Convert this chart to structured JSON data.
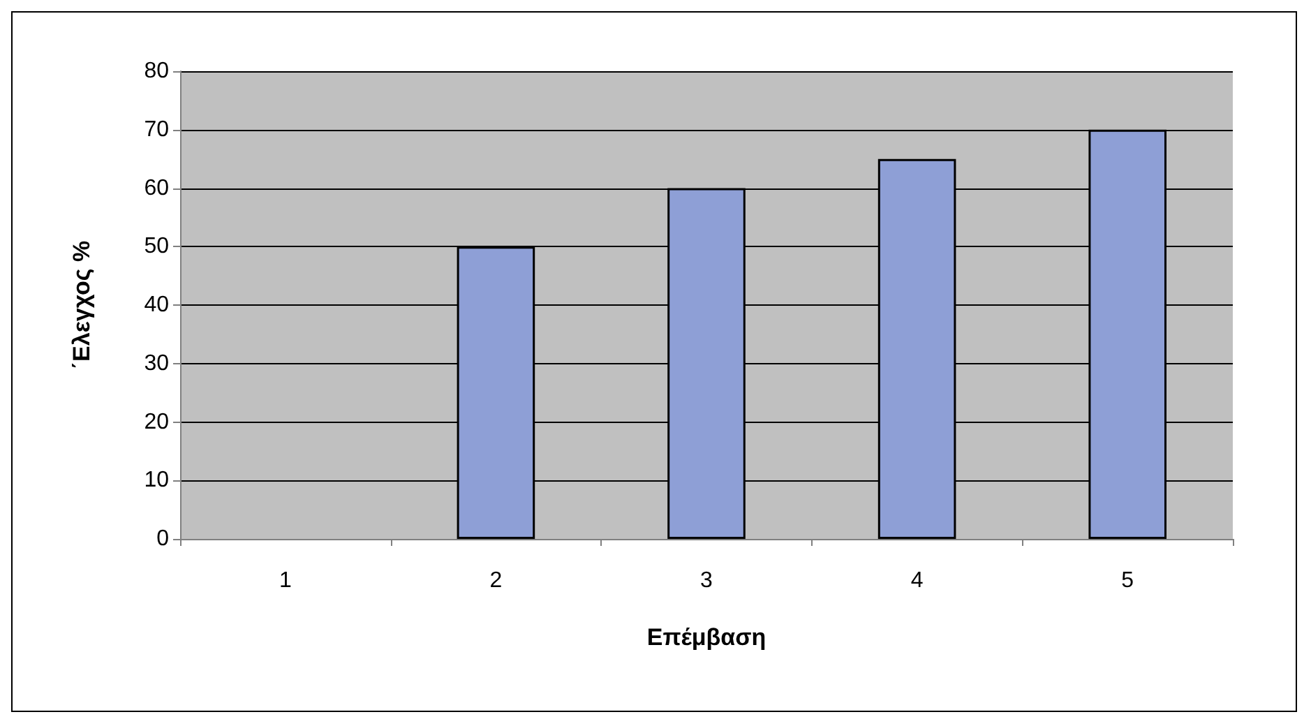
{
  "chart_data": {
    "type": "bar",
    "xlabel": "Επέμβαση",
    "ylabel": "΄Ελεγχος %",
    "categories": [
      "1",
      "2",
      "3",
      "4",
      "5"
    ],
    "values": [
      null,
      50,
      60,
      65,
      70
    ],
    "color": "#8e9fd6",
    "ylim": [
      0,
      80
    ],
    "yticks": [
      0,
      10,
      20,
      30,
      40,
      50,
      60,
      70,
      80
    ],
    "grid": "y"
  }
}
